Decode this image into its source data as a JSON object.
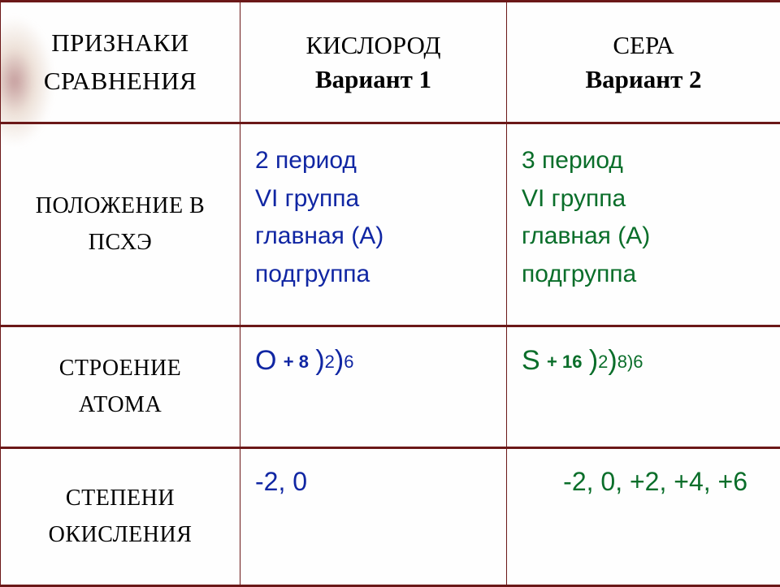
{
  "colors": {
    "border": "#6b1818",
    "header_text": "#000000",
    "label_text": "#000000",
    "oxygen_text": "#1026a3",
    "sulfur_text": "#0a6e2a",
    "oxid_oxy": "#1026a3",
    "oxid_sul": "#0a6e2a",
    "bg": "#fefefe"
  },
  "header": {
    "label_line1": "ПРИЗНАКИ",
    "label_line2": "СРАВНЕНИЯ",
    "oxy_name": "КИСЛОРОД",
    "oxy_variant": "Вариант 1",
    "sul_name": "СЕРА",
    "sul_variant": "Вариант 2"
  },
  "rows": {
    "position": {
      "label_line1": "ПОЛОЖЕНИЕ В",
      "label_line2": "ПСХЭ",
      "oxy_line1": "2 период",
      "oxy_line2": "VI группа",
      "oxy_line3": "главная (А)",
      "oxy_line4": "подгруппа",
      "sul_line1": "3 период",
      "sul_line2": "VI группа",
      "sul_line3": "главная (А)",
      "sul_line4": "подгруппа"
    },
    "atom": {
      "label_line1": "СТРОЕНИЕ",
      "label_line2": "АТОМА",
      "oxy_symbol": "O",
      "oxy_charge": "+ 8",
      "oxy_shell1": "2",
      "oxy_shell2": "6",
      "sul_symbol": "S",
      "sul_charge": "+ 16",
      "sul_shell1": "2",
      "sul_shell2": "8)6"
    },
    "oxid": {
      "label_line1": "СТЕПЕНИ",
      "label_line2": "ОКИСЛЕНИЯ",
      "oxy": "-2, 0",
      "sul": "-2, 0, +2, +4, +6"
    }
  }
}
